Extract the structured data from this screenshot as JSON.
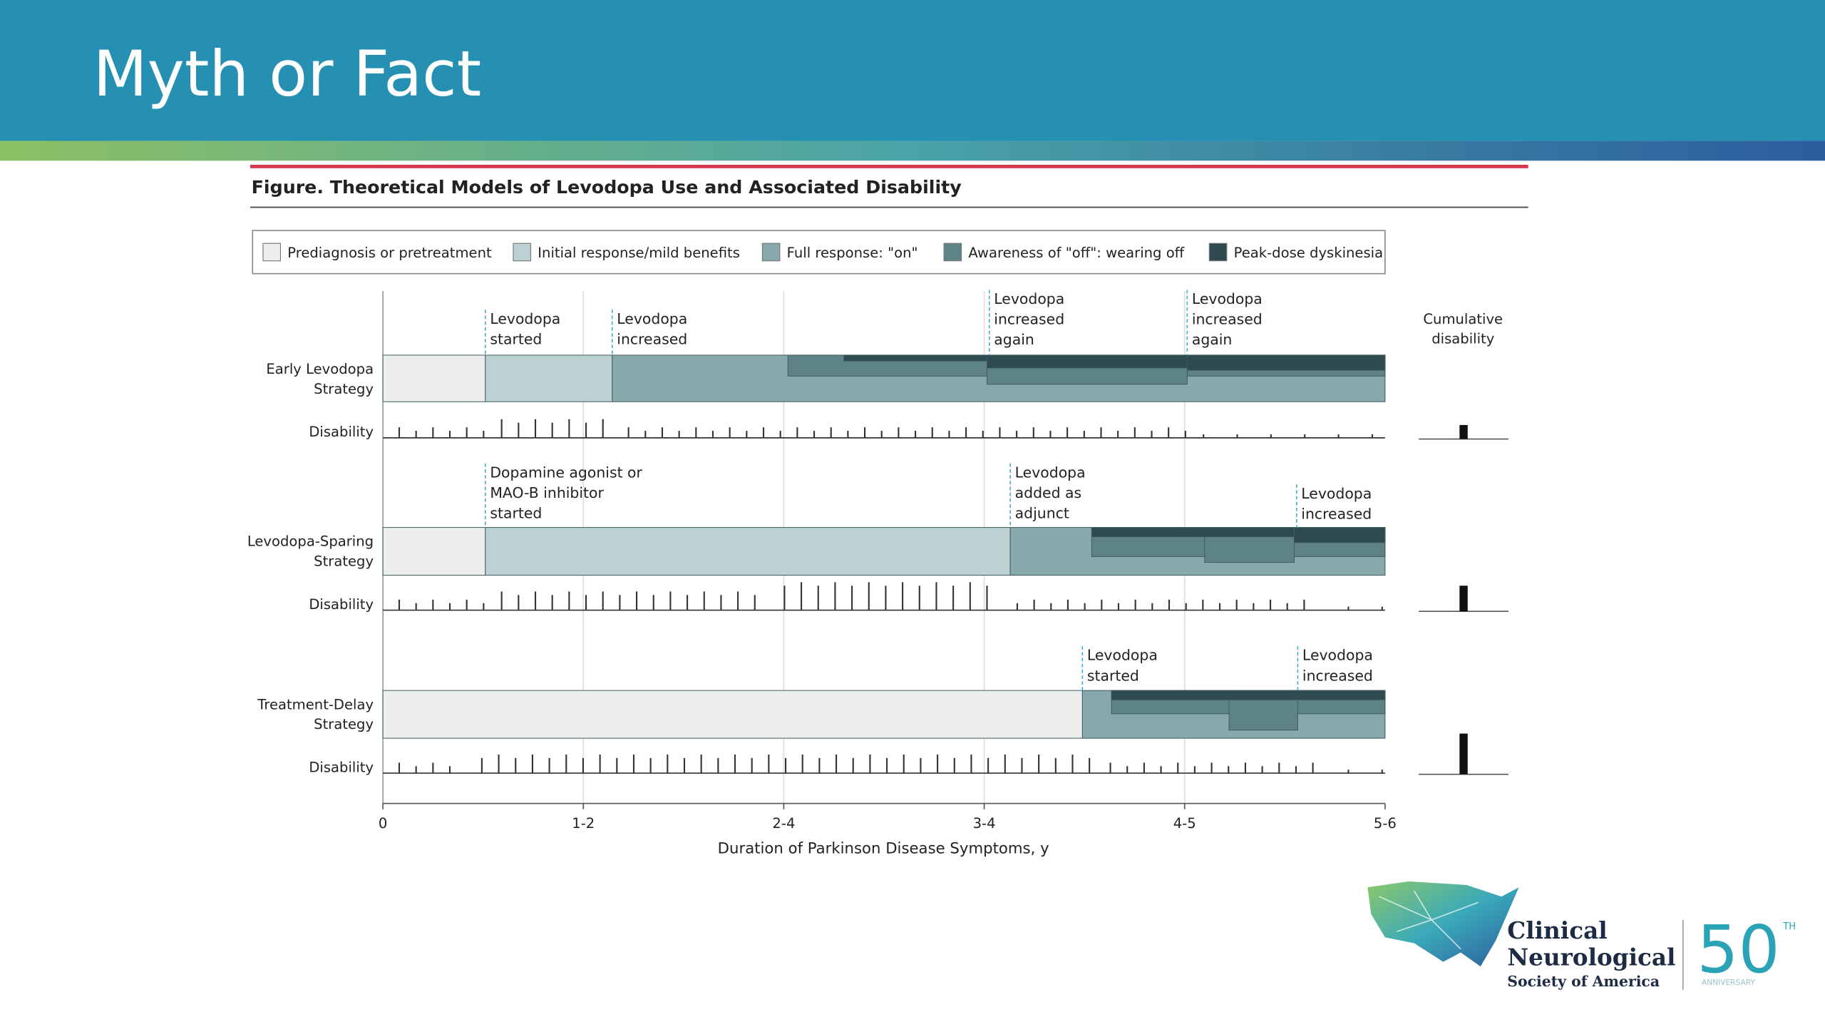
{
  "header": {
    "title": "Myth or Fact"
  },
  "figure": {
    "title": "Figure. Theoretical Models of Levodopa Use and Associated Disability",
    "legend": [
      "Prediagnosis or pretreatment",
      "Initial response/mild benefits",
      "Full response: \"on\"",
      "Awareness of \"off\": wearing off",
      "Peak-dose dyskinesia"
    ],
    "rows": [
      {
        "label": [
          "Early Levodopa",
          "Strategy"
        ],
        "disability": "Disability",
        "annotations": [
          [
            "Levodopa",
            "started"
          ],
          [
            "Levodopa",
            "increased"
          ],
          [
            "Levodopa",
            "increased",
            "again"
          ],
          [
            "Levodopa",
            "increased",
            "again"
          ]
        ]
      },
      {
        "label": [
          "Levodopa-Sparing",
          "Strategy"
        ],
        "disability": "Disability",
        "annotations": [
          [
            "Dopamine agonist or",
            "MAO-B inhibitor",
            "started"
          ],
          [
            "Levodopa",
            "added as",
            "adjunct"
          ],
          [
            "Levodopa",
            "increased"
          ]
        ]
      },
      {
        "label": [
          "Treatment-Delay",
          "Strategy"
        ],
        "disability": "Disability",
        "annotations": [
          [
            "Levodopa",
            "started"
          ],
          [
            "Levodopa",
            "increased"
          ]
        ]
      }
    ],
    "cumulative": [
      "Cumulative",
      "disability"
    ],
    "x_axis": {
      "ticks": [
        "0",
        "1-2",
        "2-4",
        "3-4",
        "4-5",
        "5-6"
      ],
      "label": "Duration of Parkinson Disease Symptoms, y"
    }
  },
  "logo": {
    "lines": [
      "Clinical",
      "Neurological",
      "Society of America"
    ],
    "number": "50",
    "suffix": "TH",
    "tagline": "ANNIVERSARY"
  }
}
